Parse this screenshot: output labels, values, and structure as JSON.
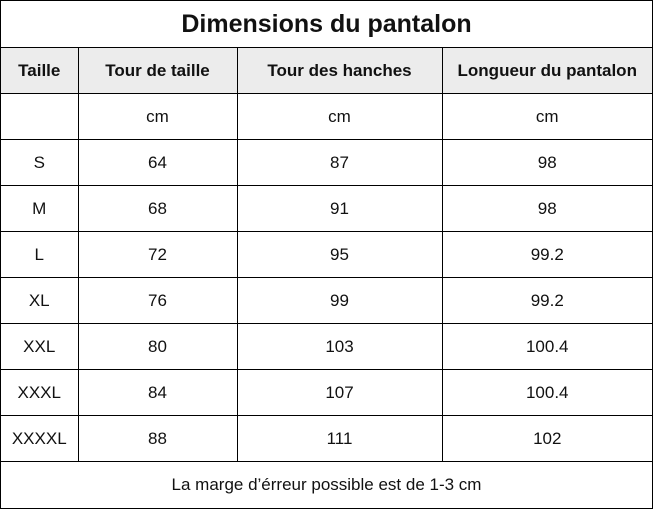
{
  "title": "Dimensions du pantalon",
  "headers": [
    "Taille",
    "Tour de taille",
    "Tour des hanches",
    "Longueur du pantalon"
  ],
  "units": [
    "",
    "cm",
    "cm",
    "cm"
  ],
  "rows": [
    [
      "S",
      "64",
      "87",
      "98"
    ],
    [
      "M",
      "68",
      "91",
      "98"
    ],
    [
      "L",
      "72",
      "95",
      "99.2"
    ],
    [
      "XL",
      "76",
      "99",
      "99.2"
    ],
    [
      "XXL",
      "80",
      "103",
      "100.4"
    ],
    [
      "XXXL",
      "84",
      "107",
      "100.4"
    ],
    [
      "XXXXL",
      "88",
      "111",
      "102"
    ]
  ],
  "footer": "La marge d’érreur possible est de 1-3 cm"
}
